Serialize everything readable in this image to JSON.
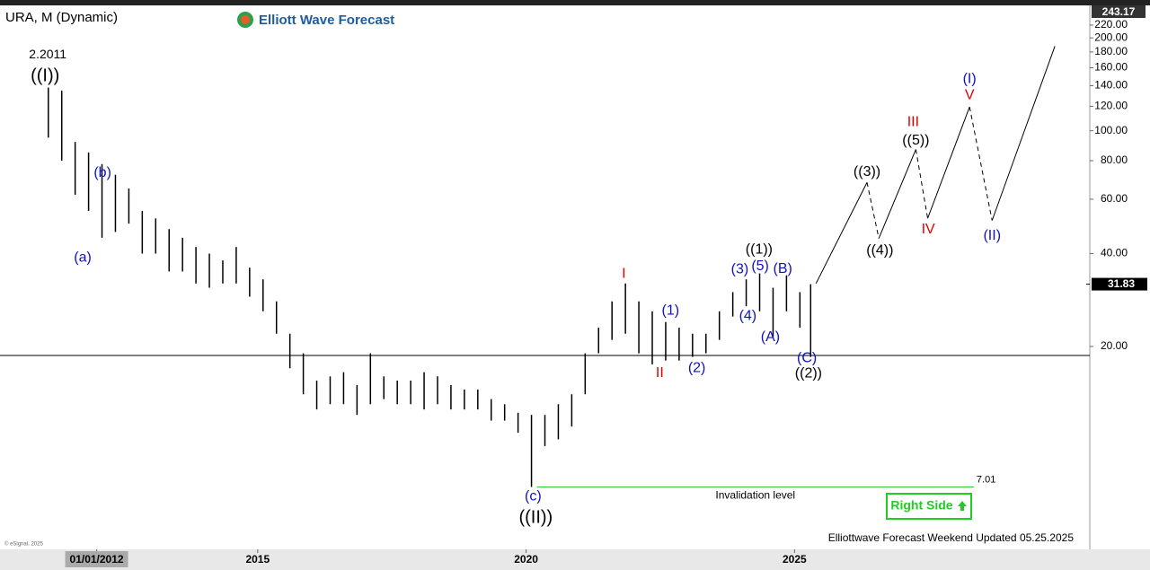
{
  "chart_data": {
    "type": "ohlc",
    "title": "URA, M (Dynamic)",
    "brand": "Elliott Wave Forecast",
    "footer": "Elliottwave Forecast Weekend Updated 05.25.2025",
    "copyright": "© eSignal, 2025",
    "badge": "Right Side",
    "log_scale": true,
    "ylim": [
      4.46,
      243.17
    ],
    "yticks": [
      {
        "value": 20,
        "label": "20.00"
      },
      {
        "value": 40,
        "label": "40.00"
      },
      {
        "value": 60,
        "label": "60.00"
      },
      {
        "value": 80,
        "label": "80.00"
      },
      {
        "value": 100,
        "label": "100.00"
      },
      {
        "value": 120,
        "label": "120.00"
      },
      {
        "value": 140,
        "label": "140.00"
      },
      {
        "value": 160,
        "label": "160.00"
      },
      {
        "value": 180,
        "label": "180.00"
      },
      {
        "value": 200,
        "label": "200.00"
      },
      {
        "value": 220,
        "label": "220.00"
      }
    ],
    "xlim": [
      2010.2,
      2030.5
    ],
    "xticks": [
      {
        "value": 2012,
        "label": "01/01/2012"
      },
      2015,
      2020,
      2025
    ],
    "last_price": 31.83,
    "hline": 18.7,
    "bar_color": "#000000",
    "x": [
      2011.1,
      2011.35,
      2011.6,
      2011.85,
      2012.1,
      2012.35,
      2012.6,
      2012.85,
      2013.1,
      2013.35,
      2013.6,
      2013.85,
      2014.1,
      2014.35,
      2014.6,
      2014.85,
      2015.1,
      2015.35,
      2015.6,
      2015.85,
      2016.1,
      2016.35,
      2016.6,
      2016.85,
      2017.1,
      2017.35,
      2017.6,
      2017.85,
      2018.1,
      2018.35,
      2018.6,
      2018.85,
      2019.1,
      2019.35,
      2019.6,
      2019.85,
      2020.1,
      2020.35,
      2020.6,
      2020.85,
      2021.1,
      2021.35,
      2021.6,
      2021.85,
      2022.1,
      2022.35,
      2022.6,
      2022.85,
      2023.1,
      2023.35,
      2023.6,
      2023.85,
      2024.1,
      2024.35,
      2024.6,
      2024.85,
      2025.1,
      2025.3
    ],
    "low": [
      95,
      80,
      62,
      55,
      45,
      47,
      50,
      40,
      40,
      35,
      35,
      32,
      31,
      32,
      32,
      29,
      26,
      22,
      17,
      14,
      12.5,
      13,
      13,
      12,
      13,
      13.5,
      13,
      13,
      12.5,
      13,
      12.5,
      12.5,
      12.5,
      11.5,
      11.5,
      10.5,
      7.01,
      9.5,
      10,
      11,
      14,
      19,
      21,
      22,
      19,
      17.5,
      18,
      18,
      18.5,
      19,
      21,
      25,
      27,
      26,
      21.5,
      26,
      23,
      18.5
    ],
    "high": [
      138,
      135,
      92,
      85,
      78,
      72,
      65,
      55,
      52,
      48,
      45,
      42,
      40,
      38,
      42,
      36,
      33,
      28,
      22,
      19,
      15.5,
      16,
      16.5,
      15,
      19,
      16,
      15.5,
      15.5,
      16.5,
      16,
      15,
      14.5,
      14.5,
      13.5,
      13,
      12.2,
      12,
      12,
      13,
      14,
      19,
      23,
      28,
      32,
      28,
      26,
      24,
      23,
      22,
      22,
      26,
      30,
      33,
      34.5,
      31,
      34,
      30,
      31.83
    ],
    "projection": {
      "x": [
        2025.4,
        2026.35,
        2026.57,
        2027.26,
        2027.48,
        2028.26,
        2028.68,
        2029.85
      ],
      "values": [
        32,
        68,
        44.8,
        87,
        52,
        119.5,
        51.2,
        188
      ]
    },
    "invalidation": {
      "value": 7.01,
      "label": "Invalidation level",
      "x": [
        2020.2,
        2028.34
      ]
    },
    "annotations": [
      {
        "text": "2.2011",
        "x": 2011.09,
        "y": 176,
        "color": "#000000"
      },
      {
        "text": "((I))",
        "x": 2011.04,
        "y": 149.7,
        "color": "#000000"
      },
      {
        "text": "(b)",
        "x": 2012.11,
        "y": 72.9,
        "color": "#1010c8"
      },
      {
        "text": "(a)",
        "x": 2011.74,
        "y": 38.7,
        "color": "#1010c8"
      },
      {
        "text": "I",
        "x": 2021.82,
        "y": 34.3,
        "color": "#e00000"
      },
      {
        "text": "II",
        "x": 2022.49,
        "y": 16.4,
        "color": "#e00000"
      },
      {
        "text": "(1)",
        "x": 2022.69,
        "y": 26.1,
        "color": "#1010c8"
      },
      {
        "text": "(2)",
        "x": 2023.18,
        "y": 17.0,
        "color": "#1010c8"
      },
      {
        "text": "(3)",
        "x": 2023.98,
        "y": 35.5,
        "color": "#1010c8"
      },
      {
        "text": "(4)",
        "x": 2024.13,
        "y": 25.1,
        "color": "#1010c8"
      },
      {
        "text": "(5)",
        "x": 2024.36,
        "y": 36.4,
        "color": "#1010c8"
      },
      {
        "text": "((1))",
        "x": 2024.34,
        "y": 41.1,
        "color": "#000000"
      },
      {
        "text": "(B)",
        "x": 2024.78,
        "y": 35.6,
        "color": "#1010c8"
      },
      {
        "text": "(A)",
        "x": 2024.55,
        "y": 21.4,
        "color": "#1010c8"
      },
      {
        "text": "(C)",
        "x": 2025.23,
        "y": 18.3,
        "color": "#1010c8"
      },
      {
        "text": "((2))",
        "x": 2025.26,
        "y": 16.3,
        "color": "#000000"
      },
      {
        "text": "((3))",
        "x": 2026.35,
        "y": 73.4,
        "color": "#000000"
      },
      {
        "text": "((4))",
        "x": 2026.59,
        "y": 40.8,
        "color": "#000000"
      },
      {
        "text": "III",
        "x": 2027.21,
        "y": 106.6,
        "color": "#e00000"
      },
      {
        "text": "((5))",
        "x": 2027.26,
        "y": 92.7,
        "color": "#000000"
      },
      {
        "text": "IV",
        "x": 2027.49,
        "y": 47.9,
        "color": "#e00000"
      },
      {
        "text": "(I)",
        "x": 2028.26,
        "y": 146.8,
        "color": "#1010c8"
      },
      {
        "text": "V",
        "x": 2028.26,
        "y": 130.2,
        "color": "#e00000"
      },
      {
        "text": "(II)",
        "x": 2028.68,
        "y": 45.7,
        "color": "#1010c8"
      },
      {
        "text": "(c)",
        "x": 2020.13,
        "y": 6.53,
        "color": "#1010c8"
      },
      {
        "text": "((II))",
        "x": 2020.18,
        "y": 5.56,
        "color": "#000000"
      }
    ]
  }
}
